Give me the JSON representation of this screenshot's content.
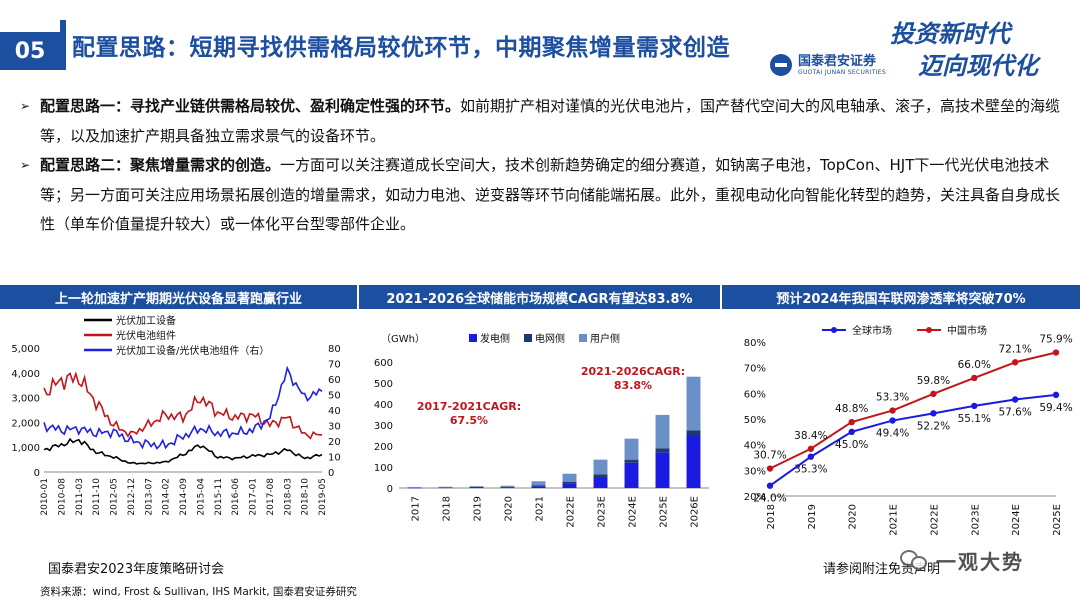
{
  "header": {
    "slide_number": "05",
    "title": "配置思路：短期寻找供需格局较优环节，中期聚焦增量需求创造",
    "logo_cn": "国泰君安证券",
    "logo_en": "GUOTAI JUNAN SECURITIES",
    "slogan_line1": "投资新时代",
    "slogan_line2": "迈向现代化"
  },
  "bullets": [
    {
      "bold": "配置思路一：寻找产业链供需格局较优、盈利确定性强的环节。",
      "text": "如前期扩产相对谨慎的光伏电池片，国产替代空间大的风电轴承、滚子，高技术壁垒的海缆等，以及加速扩产期具备独立需求景气的设备环节。"
    },
    {
      "bold": "配置思路二：聚焦增量需求的创造。",
      "text": "一方面可以关注赛道成长空间大，技术创新趋势确定的细分赛道，如钠离子电池，TopCon、HJT下一代光伏电池技术等；另一方面可关注应用场景拓展创造的增量需求，如动力电池、逆变器等环节向储能端拓展。此外，重视电动化向智能化转型的趋势，关注具备自身成长性（单车价值量提升较大）或一体化平台型零部件企业。"
    }
  ],
  "panels": {
    "p1_title": "上一轮加速扩产期期光伏设备显著跑赢行业",
    "p2_title": "2021-2026全球储能市场规模CAGR有望达83.8%",
    "p3_title": "预计2024年我国车联网渗透率将突破70%"
  },
  "chart_data": [
    {
      "type": "line",
      "legend": [
        "光伏加工设备",
        "光伏电池组件",
        "光伏加工设备/光伏电池组件（右）"
      ],
      "colors": [
        "#000000",
        "#c0161c",
        "#2020e0"
      ],
      "x": [
        "2010-01",
        "2010-08",
        "2011-03",
        "2011-10",
        "2012-05",
        "2012-12",
        "2013-07",
        "2014-02",
        "2014-09",
        "2015-04",
        "2015-11",
        "2016-06",
        "2017-01",
        "2017-08",
        "2018-03",
        "2018-10",
        "2019-05"
      ],
      "ylim": [
        0,
        5000
      ],
      "yticks": [
        "0",
        "1,000",
        "2,000",
        "3,000",
        "4,000",
        "5,000"
      ],
      "y2lim": [
        0,
        80
      ],
      "y2ticks": [
        "0",
        "10",
        "20",
        "30",
        "40",
        "50",
        "60",
        "70",
        "80"
      ],
      "series": [
        {
          "name": "光伏加工设备",
          "axis": "left",
          "values": [
            900,
            1100,
            1300,
            800,
            600,
            350,
            350,
            400,
            700,
            1100,
            600,
            550,
            650,
            700,
            900,
            550,
            700
          ]
        },
        {
          "name": "光伏电池组件",
          "axis": "left",
          "values": [
            3200,
            3700,
            3800,
            2800,
            1900,
            1500,
            1900,
            2300,
            2200,
            3000,
            2400,
            2200,
            2300,
            1900,
            2200,
            1500,
            1500
          ]
        },
        {
          "name": "光伏加工设备/光伏电池组件（右）",
          "axis": "right",
          "values": [
            30,
            27,
            28,
            25,
            26,
            20,
            18,
            17,
            23,
            28,
            25,
            25,
            27,
            35,
            65,
            48,
            52
          ]
        }
      ]
    },
    {
      "type": "bar",
      "unit": "（GWh）",
      "legend": [
        "发电侧",
        "电网侧",
        "用户侧"
      ],
      "colors": [
        "#1a1ae0",
        "#1f3b6e",
        "#6b8fc7"
      ],
      "categories": [
        "2017",
        "2018",
        "2019",
        "2020",
        "2021",
        "2022E",
        "2023E",
        "2024E",
        "2025E",
        "2026E"
      ],
      "ylim": [
        0,
        600
      ],
      "yticks": [
        "0",
        "100",
        "200",
        "300",
        "400",
        "500",
        "600"
      ],
      "series": [
        {
          "name": "发电侧",
          "values": [
            1,
            2,
            3,
            4,
            8,
            22,
            50,
            120,
            170,
            250
          ]
        },
        {
          "name": "电网侧",
          "values": [
            1,
            1,
            2,
            2,
            4,
            8,
            15,
            15,
            18,
            25
          ]
        },
        {
          "name": "用户侧",
          "values": [
            2,
            3,
            4,
            5,
            20,
            38,
            70,
            100,
            160,
            255
          ]
        }
      ],
      "annotations": [
        {
          "text": "2017-2021CAGR:",
          "text2": "67.5%"
        },
        {
          "text": "2021-2026CAGR:",
          "text2": "83.8%"
        }
      ]
    },
    {
      "type": "line",
      "legend": [
        "全球市场",
        "中国市场"
      ],
      "colors": [
        "#1a1ae0",
        "#c0161c"
      ],
      "categories": [
        "2018",
        "2019",
        "2020",
        "2021E",
        "2022E",
        "2023E",
        "2024E",
        "2025E"
      ],
      "ylim": [
        0.2,
        0.8
      ],
      "yticks": [
        "20%",
        "30%",
        "40%",
        "50%",
        "60%",
        "70%",
        "80%"
      ],
      "series": [
        {
          "name": "全球市场",
          "values": [
            0.24,
            0.353,
            0.45,
            0.494,
            0.522,
            0.551,
            0.576,
            0.594
          ],
          "labels": [
            "24.0%",
            "35.3%",
            "45.0%",
            "49.4%",
            "52.2%",
            "55.1%",
            "57.6%",
            "59.4%"
          ]
        },
        {
          "name": "中国市场",
          "values": [
            0.307,
            0.384,
            0.488,
            0.533,
            0.598,
            0.66,
            0.721,
            0.759
          ],
          "labels": [
            "30.7%",
            "38.4%",
            "48.8%",
            "53.3%",
            "59.8%",
            "66.0%",
            "72.1%",
            "75.9%"
          ]
        }
      ]
    }
  ],
  "footer": {
    "left": "国泰君安2023年度策略研讨会",
    "right": "请参阅附注免责声明",
    "source": "资料来源：wind, Frost & Sullivan, IHS Markit, 国泰君安证券研究",
    "watermark": "一观大势"
  }
}
